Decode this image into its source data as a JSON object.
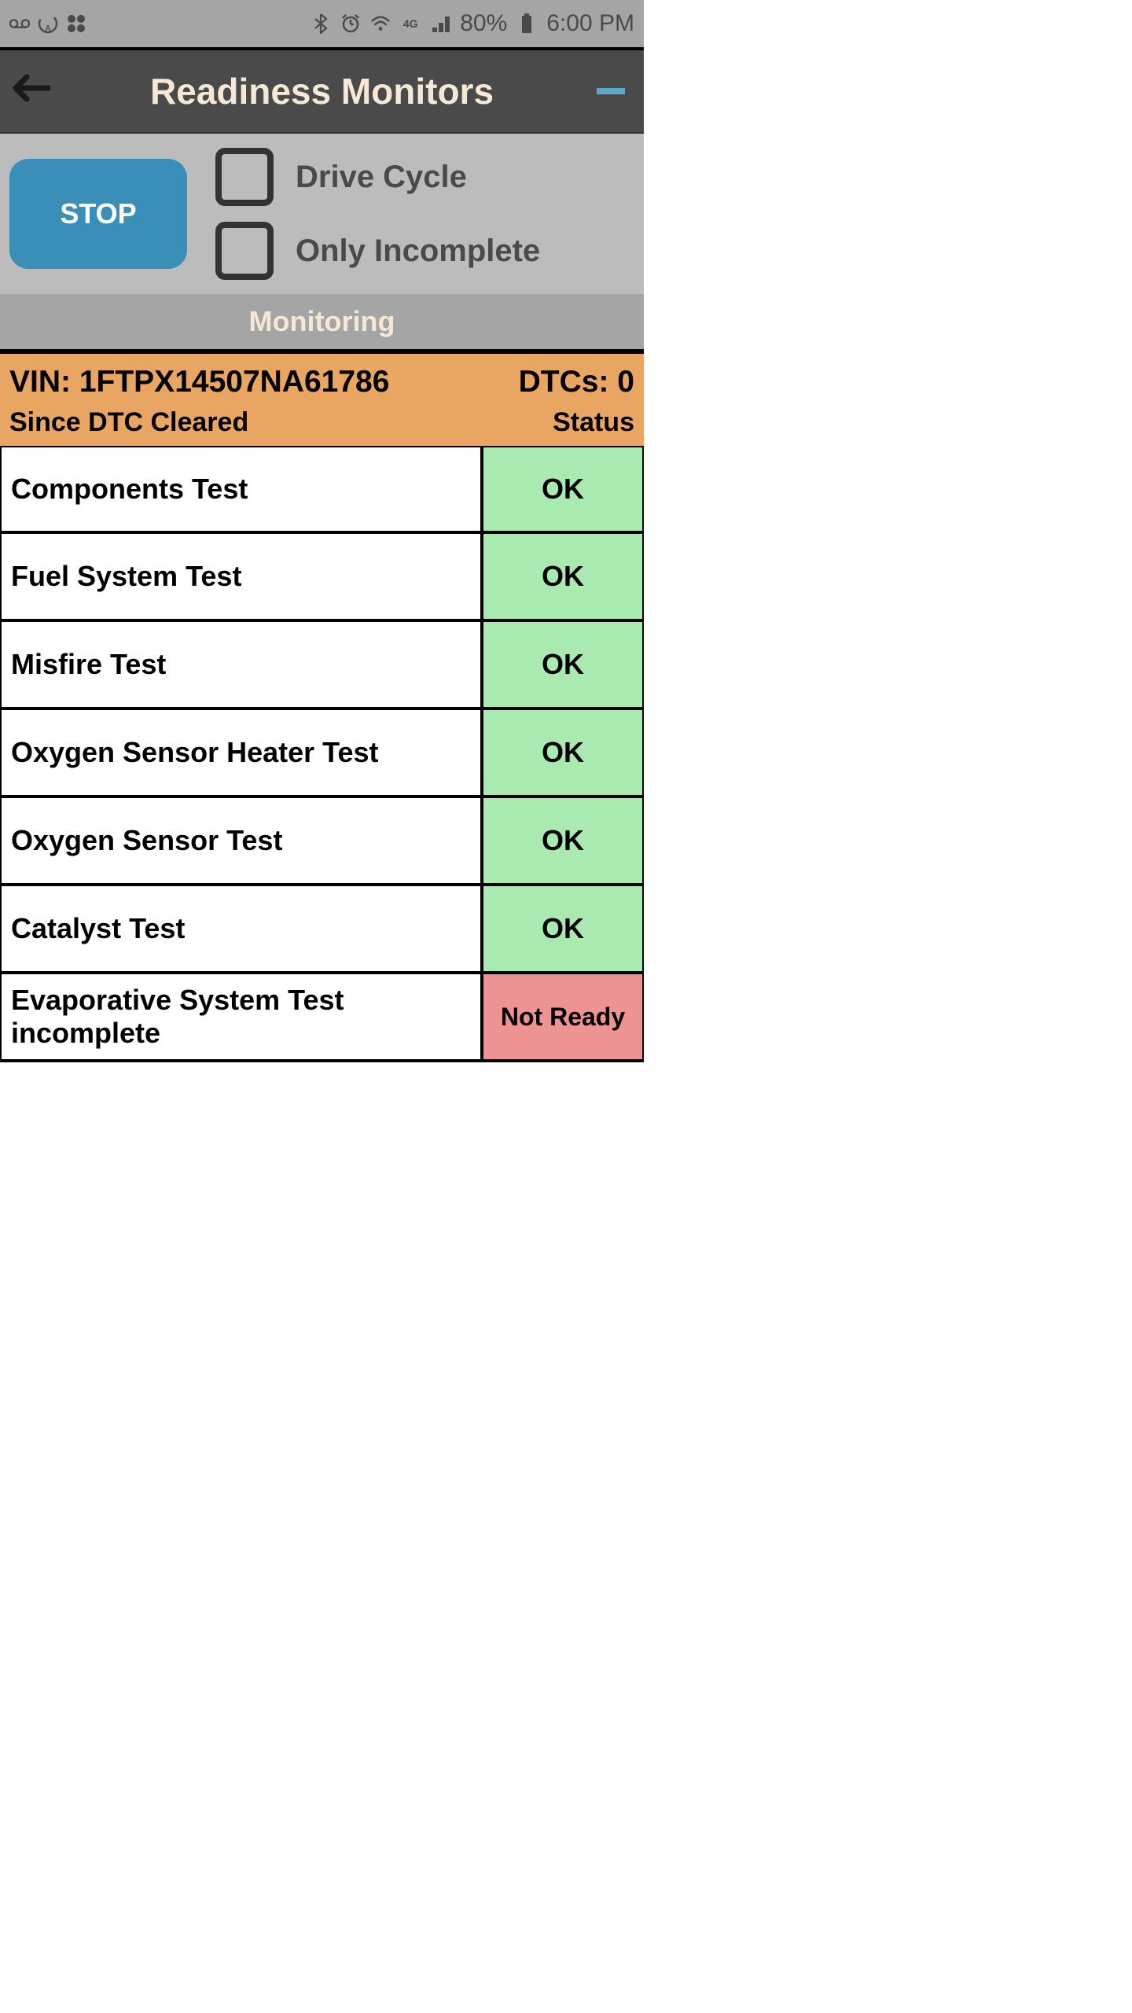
{
  "statusBar": {
    "battery": "80%",
    "time": "6:00 PM"
  },
  "header": {
    "title": "Readiness Monitors"
  },
  "controls": {
    "stopButton": "STOP",
    "driveCycle": "Drive Cycle",
    "onlyIncomplete": "Only Incomplete"
  },
  "monitoring": {
    "label": "Monitoring"
  },
  "vinBanner": {
    "vinLabel": "VIN: 1FTPX14507NA61786",
    "dtcs": "DTCs: 0",
    "since": "Since DTC Cleared",
    "statusLabel": "Status"
  },
  "tests": [
    {
      "name": "Components Test",
      "status": "OK",
      "statusClass": "ok"
    },
    {
      "name": "Fuel System Test",
      "status": "OK",
      "statusClass": "ok"
    },
    {
      "name": "Misfire Test",
      "status": "OK",
      "statusClass": "ok"
    },
    {
      "name": "Oxygen Sensor Heater Test",
      "status": "OK",
      "statusClass": "ok"
    },
    {
      "name": "Oxygen Sensor Test",
      "status": "OK",
      "statusClass": "ok"
    },
    {
      "name": "Catalyst Test",
      "status": "OK",
      "statusClass": "ok"
    },
    {
      "name": "Evaporative System Test incomplete",
      "status": "Not Ready",
      "statusClass": "notready"
    }
  ],
  "colors": {
    "statusBarBg": "#a5a5a5",
    "headerBg": "#4a4a4a",
    "titleColor": "#f5e8d4",
    "controlsBg": "#bcbcbc",
    "stopBg": "#3a8fb8",
    "vinBg": "#e8a662",
    "okBg": "#a8eab0",
    "notReadyBg": "#ee9393"
  }
}
